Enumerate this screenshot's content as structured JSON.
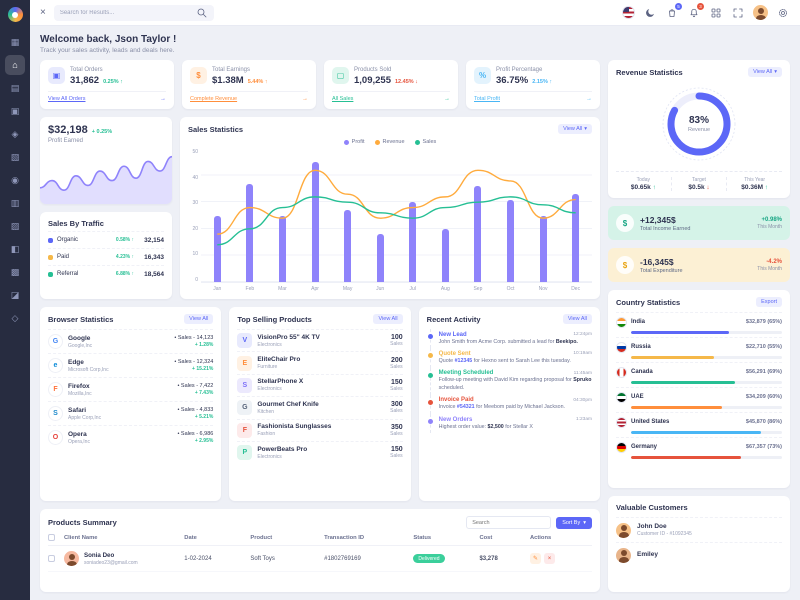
{
  "ui": {
    "caret": "▾",
    "arrow_right": "→",
    "close_glyph": "×"
  },
  "topbar": {
    "search_placeholder": "Search for Results...",
    "cart_badge": "5",
    "bell_badge": "3"
  },
  "sidebar": {
    "items": [
      {
        "name": "dashboards",
        "glyph": "▦"
      },
      {
        "name": "home",
        "glyph": "⌂",
        "active_bg": "rgba(255,255,255,0.16)",
        "active_color": "#ffffff"
      },
      {
        "name": "pages",
        "glyph": "▤"
      },
      {
        "name": "tasks",
        "glyph": "▣"
      },
      {
        "name": "authentication",
        "glyph": "◈"
      },
      {
        "name": "error",
        "glyph": "▧"
      },
      {
        "name": "ui-elements",
        "glyph": "◉"
      },
      {
        "name": "utilities",
        "glyph": "▥"
      },
      {
        "name": "forms",
        "glyph": "▨"
      },
      {
        "name": "advanced-ui",
        "glyph": "◧"
      },
      {
        "name": "widgets",
        "glyph": "▩"
      },
      {
        "name": "apps",
        "glyph": "◪"
      },
      {
        "name": "charts",
        "glyph": "◇"
      }
    ]
  },
  "welcome": {
    "title": "Welcome back, Json Taylor !",
    "subtitle": "Track your sales activity, leads and deals here."
  },
  "stats": [
    {
      "label": "Total Orders",
      "value": "31,862",
      "delta": "0.25% ↑",
      "delta_color": "#26bf94",
      "link": "View All Orders",
      "link_color": "#5c67f7",
      "icon_glyph": "▣",
      "icon_bg": "#e8eafd",
      "icon_color": "#5c67f7"
    },
    {
      "label": "Total Earnings",
      "value": "$1.38M",
      "delta": "5.44% ↑",
      "delta_color": "#ff8e3c",
      "link": "Complete Revenue",
      "link_color": "#ff8e3c",
      "icon_glyph": "$",
      "icon_bg": "#fff1e3",
      "icon_color": "#ff8e3c"
    },
    {
      "label": "Products Sold",
      "value": "1,09,255",
      "delta": "12.45% ↓",
      "delta_color": "#e6533c",
      "link": "All Sales",
      "link_color": "#26bf94",
      "icon_glyph": "▢",
      "icon_bg": "#e0f6ee",
      "icon_color": "#26bf94"
    },
    {
      "label": "Profit Percentage",
      "value": "36.75%",
      "delta": "2.15% ↑",
      "delta_color": "#49b6f5",
      "link": "Total Profit",
      "link_color": "#49b6f5",
      "icon_glyph": "%",
      "icon_bg": "#e3f3fd",
      "icon_color": "#49b6f5"
    }
  ],
  "profit_earned": {
    "value": "$32,198",
    "delta": "+ 0.25%",
    "label": "Profit Earned"
  },
  "sales_by_traffic": {
    "title": "Sales By Traffic",
    "rows": [
      {
        "label": "Organic",
        "color": "#5c67f7",
        "pct": "0.58% ↑",
        "value": "32,154"
      },
      {
        "label": "Paid",
        "color": "#f5b849",
        "pct": "4.23% ↑",
        "value": "16,343"
      },
      {
        "label": "Referral",
        "color": "#26bf94",
        "pct": "6.88% ↑",
        "value": "18,564"
      }
    ]
  },
  "sales_statistics": {
    "title": "Sales Statistics",
    "view_all": "View All"
  },
  "revenue_statistics": {
    "title": "Revenue Statistics",
    "view_all": "View All",
    "donut_value": "83%",
    "donut_label": "Revenue",
    "stats": [
      {
        "label": "Today",
        "value": "$0.65k",
        "arrow": "↑",
        "arrow_color": "#26bf94"
      },
      {
        "label": "Target",
        "value": "$0.5k",
        "arrow": "↓",
        "arrow_color": "#e6533c"
      },
      {
        "label": "This Year",
        "value": "$0.36M",
        "arrow": "↑",
        "arrow_color": "#26bf94"
      }
    ]
  },
  "income_card": {
    "value": "+12,345$",
    "label": "Total Income Earned",
    "delta": "+0.98%",
    "period": "This Month",
    "bg": "#d5f3e8",
    "delta_color": "#17a684",
    "icon_color": "#17a684",
    "icon_glyph": "$"
  },
  "expense_card": {
    "value": "-16,345$",
    "label": "Total Expenditure",
    "delta": "-4.2%",
    "period": "This Month",
    "bg": "#fcf0d4",
    "delta_color": "#e6533c",
    "icon_color": "#e8a413",
    "icon_glyph": "$"
  },
  "browser_statistics": {
    "title": "Browser Statistics",
    "view_all": "View All",
    "rows": [
      {
        "name": "Google",
        "company": "Google,Inc",
        "sales": "• Sales - 14,123",
        "delta": "+ 1.28%",
        "letter": "G",
        "letter_color": "#4285f4"
      },
      {
        "name": "Edge",
        "company": "Microsoft Corp,Inc",
        "sales": "• Sales - 12,324",
        "delta": "+ 15.21%",
        "letter": "e",
        "letter_color": "#0b8bd8"
      },
      {
        "name": "Firefox",
        "company": "Mozilla,Inc",
        "sales": "• Sales - 7,422",
        "delta": "+ 7.43%",
        "letter": "F",
        "letter_color": "#ff7139"
      },
      {
        "name": "Safari",
        "company": "Apple Corp,Inc",
        "sales": "• Sales - 4,833",
        "delta": "+ 5.21%",
        "letter": "S",
        "letter_color": "#1b88ca"
      },
      {
        "name": "Opera",
        "company": "Opera,Inc",
        "sales": "• Sales - 6,986",
        "delta": "+ 2.95%",
        "letter": "O",
        "letter_color": "#e6413c"
      }
    ]
  },
  "top_products": {
    "title": "Top Selling Products",
    "view_all": "View All",
    "rows": [
      {
        "name": "VisionPro 55\" 4K TV",
        "category": "Electronics",
        "qty": "100",
        "unit": "Sales",
        "thumb_bg": "#e8eafd",
        "initial": "V",
        "initial_color": "#5c67f7"
      },
      {
        "name": "EliteChair Pro",
        "category": "Furniture",
        "qty": "200",
        "unit": "Sales",
        "thumb_bg": "#fff1e3",
        "initial": "E",
        "initial_color": "#ff8e3c"
      },
      {
        "name": "StellarPhone X",
        "category": "Electronics",
        "qty": "150",
        "unit": "Sales",
        "thumb_bg": "#ece9fd",
        "initial": "S",
        "initial_color": "#7c6ef8"
      },
      {
        "name": "Gourmet Chef Knife",
        "category": "Kitchen",
        "qty": "300",
        "unit": "Sales",
        "thumb_bg": "#eef2f6",
        "initial": "G",
        "initial_color": "#56637a"
      },
      {
        "name": "Fashionista Sunglasses",
        "category": "Fashion",
        "qty": "350",
        "unit": "Sales",
        "thumb_bg": "#fdeaea",
        "initial": "F",
        "initial_color": "#e6533c"
      },
      {
        "name": "PowerBeats Pro",
        "category": "Electronics",
        "qty": "150",
        "unit": "Sales",
        "thumb_bg": "#e0f6ee",
        "initial": "P",
        "initial_color": "#26bf94"
      }
    ]
  },
  "recent_activity": {
    "title": "Recent Activity",
    "view_all": "View All",
    "items": [
      {
        "title": "New Lead",
        "color": "#5c67f7",
        "time": "12:24pm",
        "pre": "John Smith from Acme Corp. submitted a lead for ",
        "strong": "Beekipo.",
        "post": "",
        "strong_color": "#2e3350"
      },
      {
        "title": "Quote Sent",
        "color": "#f5b849",
        "time": "10:19am",
        "pre": "Quote ",
        "strong": "#12345",
        "post": " for Hexno sent to Sarah Lee this tuesday.",
        "strong_color": "#5c67f7"
      },
      {
        "title": "Meeting Scheduled",
        "color": "#26bf94",
        "time": "11:45am",
        "pre": "Follow-up meeting with David Kim regarding proposal for ",
        "strong": "Spruko",
        "post": " scheduled.",
        "strong_color": "#2e3350"
      },
      {
        "title": "Invoice Paid",
        "color": "#e6533c",
        "time": "04:30pm",
        "pre": "Invoice ",
        "strong": "#54321",
        "post": " for Meebom paid by Michael Jackson.",
        "strong_color": "#5c67f7"
      },
      {
        "title": "New Orders",
        "color": "#8f83fb",
        "time": "1:23am",
        "pre": "Highest order value: ",
        "strong": "$2,500",
        "post": " for Stellar X",
        "strong_color": "#2e3350"
      }
    ]
  },
  "country_statistics": {
    "title": "Country Statistics",
    "export_label": "Export",
    "rows": [
      {
        "country": "India",
        "value": "$32,879 (65%)",
        "pct": "65%",
        "color": "#5c67f7",
        "flag_css": "linear-gradient(180deg,#ff9933 0%,#ff9933 33%,#ffffff 33%,#ffffff 66%,#138808 66%,#138808 100%)"
      },
      {
        "country": "Russia",
        "value": "$22,710 (55%)",
        "pct": "55%",
        "color": "#f5b849",
        "flag_css": "linear-gradient(180deg,#ffffff 0%,#ffffff 33%,#0039a6 33%,#0039a6 66%,#d52b1e 66%,#d52b1e 100%)"
      },
      {
        "country": "Canada",
        "value": "$56,291 (69%)",
        "pct": "69%",
        "color": "#26bf94",
        "flag_css": "linear-gradient(90deg,#d52b1e 0%,#d52b1e 28%,#ffffff 28%,#ffffff 72%,#d52b1e 72%,#d52b1e 100%)"
      },
      {
        "country": "UAE",
        "value": "$34,209 (60%)",
        "pct": "60%",
        "color": "#ff8e3c",
        "flag_css": "linear-gradient(180deg,#00732f 0%,#00732f 33%,#ffffff 33%,#ffffff 66%,#000000 66%,#000000 100%)"
      },
      {
        "country": "United States",
        "value": "$45,870 (86%)",
        "pct": "86%",
        "color": "#49b6f5",
        "flag_css": "linear-gradient(180deg,#b22234 0%,#b22234 20%,#ffffff 20%,#ffffff 40%,#b22234 40%,#b22234 60%,#ffffff 60%,#ffffff 80%,#b22234 80%,#b22234 100%)"
      },
      {
        "country": "Germany",
        "value": "$67,357 (73%)",
        "pct": "73%",
        "color": "#e6533c",
        "flag_css": "linear-gradient(180deg,#000000 0%,#000000 33%,#dd0000 33%,#dd0000 66%,#ffce00 66%,#ffce00 100%)"
      }
    ]
  },
  "products_summary": {
    "title": "Products Summary",
    "search_placeholder": "Search",
    "sort_label": "Sort By",
    "columns": [
      "Client Name",
      "Date",
      "Product",
      "Transaction ID",
      "Status",
      "Cost",
      "Actions"
    ],
    "actions": {
      "edit": "✎",
      "delete": "×"
    },
    "rows": [
      {
        "client": "Sonia Deo",
        "email": "soniadeo23@gmail.com",
        "date": "1-02-2024",
        "product": "Soft Toys",
        "txid": "#1802769169",
        "status": "Delivered",
        "status_bg": "#3bcf9b",
        "cost": "$3,278",
        "avatar_bg": "#f6b9a0"
      }
    ]
  },
  "valuable_customers": {
    "title": "Valuable Customers",
    "rows": [
      {
        "name": "John Doe",
        "id": "Customer ID - #1092345",
        "avatar_bg": "#f6c187"
      },
      {
        "name": "Emiley",
        "id": "",
        "avatar_bg": "#e8b48a"
      }
    ]
  },
  "chart_data": [
    {
      "type": "bar",
      "title": "Sales Statistics",
      "categories": [
        "Jan",
        "Feb",
        "Mar",
        "Apr",
        "May",
        "Jun",
        "Jul",
        "Aug",
        "Sep",
        "Oct",
        "Nov",
        "Dec"
      ],
      "series": [
        {
          "name": "Profit",
          "kind": "bar",
          "color": "#8f83fb",
          "values": [
            25,
            37,
            25,
            45,
            27,
            18,
            30,
            20,
            36,
            31,
            25,
            33
          ]
        },
        {
          "name": "Revenue",
          "kind": "line",
          "color": "#ffab3d",
          "values": [
            18,
            28,
            24,
            42,
            33,
            24,
            28,
            32,
            42,
            38,
            24,
            31
          ]
        },
        {
          "name": "Sales",
          "kind": "line",
          "color": "#26bf94",
          "values": [
            14,
            20,
            28,
            32,
            30,
            26,
            24,
            28,
            30,
            32,
            29,
            26
          ]
        }
      ],
      "ylim": [
        0,
        50
      ],
      "yticks": [
        0,
        10,
        20,
        30,
        40,
        50
      ],
      "legend_position": "top"
    },
    {
      "type": "pie",
      "title": "Revenue Statistics",
      "labels": [
        "Revenue",
        "Remaining"
      ],
      "values": [
        83,
        17
      ],
      "colors": [
        "#5c67f7",
        "#edeefb"
      ],
      "center_label": "83% Revenue"
    },
    {
      "type": "area",
      "title": "Profit Earned",
      "values": [
        12,
        18,
        10,
        22,
        14,
        26,
        18,
        30,
        20,
        34,
        26,
        38
      ],
      "color": "#8f83fb"
    }
  ]
}
